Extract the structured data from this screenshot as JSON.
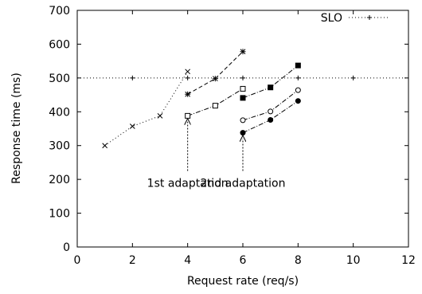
{
  "chart_data": {
    "type": "line",
    "xlabel": "Request rate (req/s)",
    "ylabel": "Response time (ms)",
    "xlim": [
      0,
      12
    ],
    "ylim": [
      0,
      700
    ],
    "xticks": [
      0,
      2,
      4,
      6,
      8,
      10,
      12
    ],
    "yticks": [
      0,
      100,
      200,
      300,
      400,
      500,
      600,
      700
    ],
    "grid": false,
    "legend_position": "top-right",
    "slo": {
      "name": "SLO",
      "value": 500,
      "x": [
        0,
        2,
        4,
        6,
        8,
        10,
        12
      ]
    },
    "series": [
      {
        "marker": "x",
        "dash": "dotted",
        "x": [
          1,
          2,
          3,
          4
        ],
        "y": [
          300,
          357,
          388,
          519
        ]
      },
      {
        "marker": "star",
        "dash": "dashed",
        "x": [
          4,
          5,
          6
        ],
        "y": [
          452,
          498,
          578
        ]
      },
      {
        "marker": "square-open",
        "dash": "dashdot",
        "x": [
          4,
          5,
          6
        ],
        "y": [
          388,
          418,
          468
        ]
      },
      {
        "marker": "square-filled",
        "dash": "dashdot",
        "x": [
          6,
          7,
          8
        ],
        "y": [
          441,
          472,
          537
        ]
      },
      {
        "marker": "circle-open",
        "dash": "dashdot",
        "x": [
          6,
          7,
          8
        ],
        "y": [
          375,
          401,
          464
        ]
      },
      {
        "marker": "circle-filled",
        "dash": "dashdot",
        "x": [
          6,
          7,
          8
        ],
        "y": [
          338,
          376,
          432
        ]
      }
    ],
    "annotations": [
      {
        "text": "1st adaptation",
        "x": 4,
        "y_from": 225,
        "y_to": 380
      },
      {
        "text": "2nd adaptation",
        "x": 6,
        "y_from": 225,
        "y_to": 330
      }
    ]
  }
}
